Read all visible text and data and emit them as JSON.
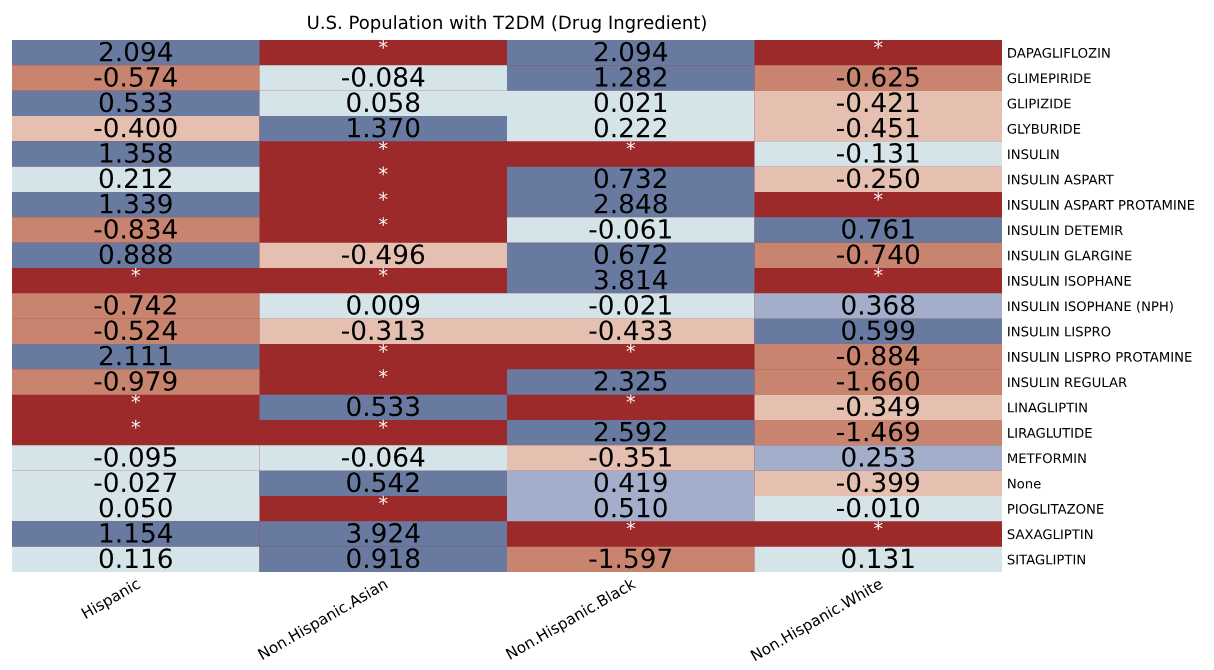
{
  "chart_data": {
    "type": "heatmap",
    "title": "U.S. Population with T2DM (Drug Ingredient)",
    "categories": [
      "Hispanic",
      "Non.Hispanic.Asian",
      "Non.Hispanic.Black",
      "Non.Hispanic.White"
    ],
    "y_categories": [
      "DAPAGLIFLOZIN",
      "GLIMEPIRIDE",
      "GLIPIZIDE",
      "GLYBURIDE",
      "INSULIN",
      "INSULIN ASPART",
      "INSULIN ASPART PROTAMINE",
      "INSULIN DETEMIR",
      "INSULIN GLARGINE",
      "INSULIN ISOPHANE",
      "INSULIN ISOPHANE (NPH)",
      "INSULIN LISPRO",
      "INSULIN LISPRO PROTAMINE",
      "INSULIN REGULAR",
      "LINAGLIPTIN",
      "LIRAGLUTIDE",
      "METFORMIN",
      "None",
      "PIOGLITAZONE",
      "SAXAGLIPTIN",
      "SITAGLIPTIN"
    ],
    "cells": [
      [
        2.094,
        null,
        2.094,
        null
      ],
      [
        -0.574,
        -0.084,
        1.282,
        -0.625
      ],
      [
        0.533,
        0.058,
        0.021,
        -0.421
      ],
      [
        -0.4,
        1.37,
        0.222,
        -0.451
      ],
      [
        1.358,
        null,
        null,
        -0.131
      ],
      [
        0.212,
        null,
        0.732,
        -0.25
      ],
      [
        1.339,
        null,
        2.848,
        null
      ],
      [
        -0.834,
        null,
        -0.061,
        0.761
      ],
      [
        0.888,
        -0.496,
        0.672,
        -0.74
      ],
      [
        null,
        null,
        3.814,
        null
      ],
      [
        -0.742,
        0.009,
        -0.021,
        0.368
      ],
      [
        -0.524,
        -0.313,
        -0.433,
        0.599
      ],
      [
        2.111,
        null,
        null,
        -0.884
      ],
      [
        -0.979,
        null,
        2.325,
        -1.66
      ],
      [
        null,
        0.533,
        null,
        -0.349
      ],
      [
        null,
        null,
        2.592,
        -1.469
      ],
      [
        -0.095,
        -0.064,
        -0.351,
        0.253
      ],
      [
        -0.027,
        0.542,
        0.419,
        -0.399
      ],
      [
        0.05,
        null,
        0.51,
        -0.01
      ],
      [
        1.154,
        3.924,
        null,
        null
      ],
      [
        0.116,
        0.918,
        -1.597,
        0.131
      ]
    ],
    "cell_labels": [
      [
        "2.094",
        "*",
        "2.094",
        "*"
      ],
      [
        "-0.574",
        "-0.084",
        "1.282",
        "-0.625"
      ],
      [
        "0.533",
        "0.058",
        "0.021",
        "-0.421"
      ],
      [
        "-0.400",
        "1.370",
        "0.222",
        "-0.451"
      ],
      [
        "1.358",
        "*",
        "*",
        "-0.131"
      ],
      [
        "0.212",
        "*",
        "0.732",
        "-0.250"
      ],
      [
        "1.339",
        "*",
        "2.848",
        "*"
      ],
      [
        "-0.834",
        "*",
        "-0.061",
        "0.761"
      ],
      [
        "0.888",
        "-0.496",
        "0.672",
        "-0.740"
      ],
      [
        "*",
        "*",
        "3.814",
        "*"
      ],
      [
        "-0.742",
        "0.009",
        "-0.021",
        "0.368"
      ],
      [
        "-0.524",
        "-0.313",
        "-0.433",
        "0.599"
      ],
      [
        "2.111",
        "*",
        "*",
        "-0.884"
      ],
      [
        "-0.979",
        "*",
        "2.325",
        "-1.660"
      ],
      [
        "*",
        "0.533",
        "*",
        "-0.349"
      ],
      [
        "*",
        "*",
        "2.592",
        "-1.469"
      ],
      [
        "-0.095",
        "-0.064",
        "-0.351",
        "0.253"
      ],
      [
        "-0.027",
        "0.542",
        "0.419",
        "-0.399"
      ],
      [
        "0.050",
        "*",
        "0.510",
        "-0.010"
      ],
      [
        "1.154",
        "3.924",
        "*",
        "*"
      ],
      [
        "0.116",
        "0.918",
        "-1.597",
        "0.131"
      ]
    ],
    "colors": [
      [
        "#687aa0",
        "#9d2a2b",
        "#687aa0",
        "#9d2a2b"
      ],
      [
        "#c8846f",
        "#d5e4e8",
        "#687aa0",
        "#c8846f"
      ],
      [
        "#687aa0",
        "#d5e4e8",
        "#d5e4e8",
        "#e5c0b0"
      ],
      [
        "#e5c0b0",
        "#687aa0",
        "#d5e4e8",
        "#e5c0b0"
      ],
      [
        "#687aa0",
        "#9d2a2b",
        "#9d2a2b",
        "#d5e4e8"
      ],
      [
        "#d5e4e8",
        "#9d2a2b",
        "#687aa0",
        "#e5c0b0"
      ],
      [
        "#687aa0",
        "#9d2a2b",
        "#687aa0",
        "#9d2a2b"
      ],
      [
        "#c8846f",
        "#9d2a2b",
        "#d5e4e8",
        "#687aa0"
      ],
      [
        "#687aa0",
        "#e5c0b0",
        "#687aa0",
        "#c8846f"
      ],
      [
        "#9d2a2b",
        "#9d2a2b",
        "#687aa0",
        "#9d2a2b"
      ],
      [
        "#c8846f",
        "#d5e4e8",
        "#d5e4e8",
        "#a3aecb"
      ],
      [
        "#c8846f",
        "#e5c0b0",
        "#e5c0b0",
        "#687aa0"
      ],
      [
        "#687aa0",
        "#9d2a2b",
        "#9d2a2b",
        "#c8846f"
      ],
      [
        "#c8846f",
        "#9d2a2b",
        "#687aa0",
        "#c8846f"
      ],
      [
        "#9d2a2b",
        "#687aa0",
        "#9d2a2b",
        "#e5c0b0"
      ],
      [
        "#9d2a2b",
        "#9d2a2b",
        "#687aa0",
        "#c8846f"
      ],
      [
        "#d5e4e8",
        "#d5e4e8",
        "#e5c0b0",
        "#a3aecb"
      ],
      [
        "#d5e4e8",
        "#687aa0",
        "#a3aecb",
        "#e5c0b0"
      ],
      [
        "#d5e4e8",
        "#9d2a2b",
        "#a3aecb",
        "#d5e4e8"
      ],
      [
        "#687aa0",
        "#687aa0",
        "#9d2a2b",
        "#9d2a2b"
      ],
      [
        "#d5e4e8",
        "#687aa0",
        "#c8846f",
        "#d5e4e8"
      ]
    ]
  }
}
